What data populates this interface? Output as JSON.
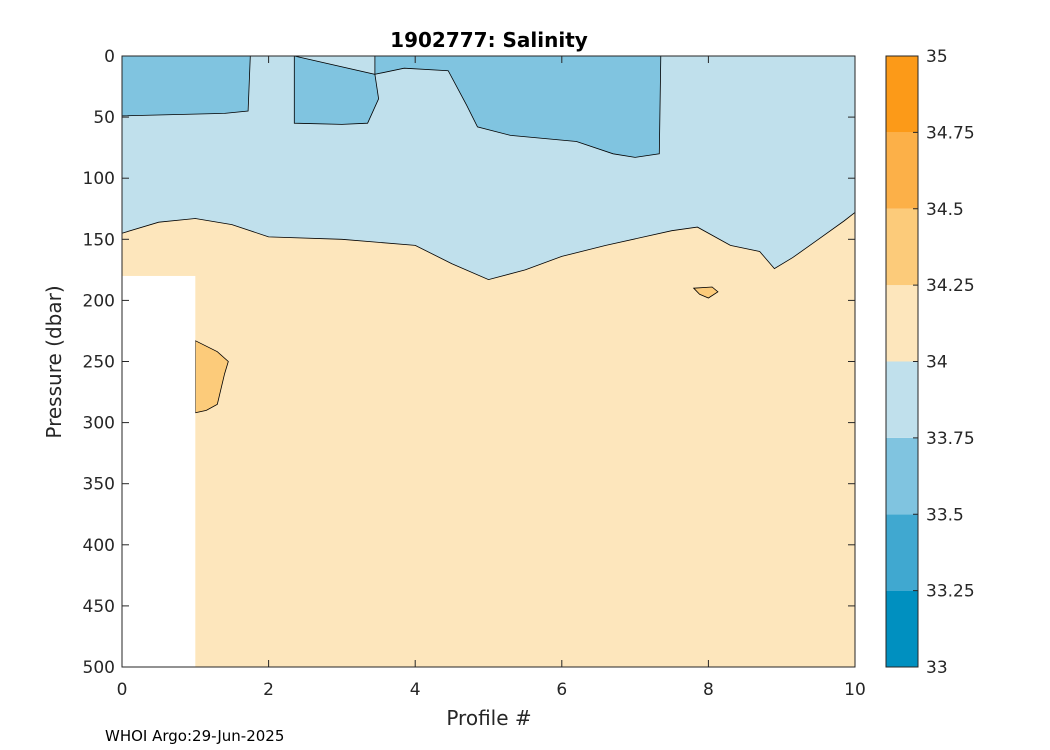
{
  "chart_data": {
    "type": "contourf",
    "title": "1902777:  Salinity",
    "xlabel": "Profile #",
    "ylabel": "Pressure (dbar)",
    "xlim": [
      0,
      10
    ],
    "ylim": [
      0,
      500
    ],
    "y_reversed": true,
    "x_ticks": [
      "0",
      "2",
      "4",
      "6",
      "8",
      "10"
    ],
    "y_ticks": [
      "0",
      "50",
      "100",
      "150",
      "200",
      "250",
      "300",
      "350",
      "400",
      "450",
      "500"
    ],
    "colorbar": {
      "levels": [
        "33",
        "33.25",
        "33.5",
        "33.75",
        "34",
        "34.25",
        "34.5",
        "34.75",
        "35"
      ],
      "colors": [
        "#0090c0",
        "#40a8d0",
        "#80c4e0",
        "#c0e0ec",
        "#fde6bc",
        "#fccb7a",
        "#fcb048",
        "#fc9a18"
      ]
    },
    "no_data_region": {
      "x": [
        0,
        1
      ],
      "y": [
        180,
        500
      ]
    },
    "regions": [
      {
        "band": "33.5-33.75",
        "outline": [
          [
            0,
            0
          ],
          [
            1.75,
            0
          ],
          [
            1.72,
            45
          ],
          [
            1.4,
            47
          ],
          [
            0,
            49
          ]
        ]
      },
      {
        "band": "33.5-33.75",
        "outline": [
          [
            2.35,
            0
          ],
          [
            3.45,
            0
          ],
          [
            3.45,
            15
          ],
          [
            3.85,
            10
          ],
          [
            4.45,
            12
          ],
          [
            4.7,
            40
          ],
          [
            4.85,
            58
          ],
          [
            5.3,
            65
          ],
          [
            6.2,
            70
          ],
          [
            6.7,
            80
          ],
          [
            7.0,
            83
          ],
          [
            7.33,
            80
          ],
          [
            7.35,
            0
          ],
          [
            2.35,
            0
          ],
          [
            2.35,
            55
          ],
          [
            3.0,
            56
          ],
          [
            3.35,
            55
          ],
          [
            3.5,
            35
          ],
          [
            3.45,
            15
          ]
        ]
      },
      {
        "band": "34-34.25",
        "outline": [
          [
            0,
            145
          ],
          [
            0.5,
            136
          ],
          [
            1.0,
            133
          ],
          [
            1.5,
            138
          ],
          [
            2.0,
            148
          ],
          [
            3.0,
            150
          ],
          [
            4.0,
            155
          ],
          [
            4.5,
            170
          ],
          [
            5.0,
            183
          ],
          [
            5.5,
            175
          ],
          [
            6.0,
            164
          ],
          [
            6.6,
            155
          ],
          [
            7.5,
            143
          ],
          [
            7.85,
            140
          ],
          [
            8.3,
            155
          ],
          [
            8.7,
            160
          ],
          [
            8.9,
            174
          ],
          [
            9.15,
            165
          ],
          [
            9.5,
            150
          ],
          [
            9.85,
            135
          ],
          [
            10,
            128
          ],
          [
            10,
            500
          ],
          [
            0,
            500
          ]
        ]
      },
      {
        "band": "34.25-34.5",
        "outline": [
          [
            1.0,
            233
          ],
          [
            1.3,
            242
          ],
          [
            1.45,
            250
          ],
          [
            1.4,
            260
          ],
          [
            1.3,
            285
          ],
          [
            1.15,
            290
          ],
          [
            1.0,
            292
          ]
        ]
      },
      {
        "band": "34.25-34.5",
        "outline": [
          [
            7.8,
            190
          ],
          [
            8.05,
            189
          ],
          [
            8.13,
            193
          ],
          [
            8.0,
            198
          ],
          [
            7.88,
            195
          ]
        ]
      }
    ],
    "footer": "WHOI Argo:29-Jun-2025"
  }
}
